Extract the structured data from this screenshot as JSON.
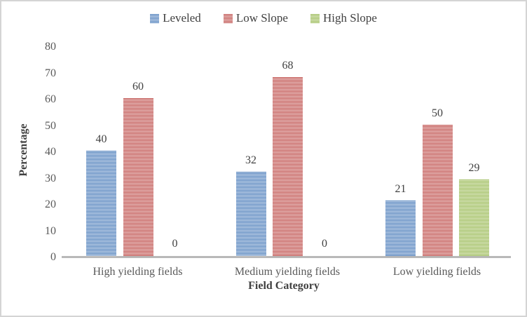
{
  "chart_data": {
    "type": "bar",
    "title": "",
    "xlabel": "Field Category",
    "ylabel": "Percentage",
    "categories": [
      "High yielding fields",
      "Medium yielding fields",
      "Low yielding fields"
    ],
    "series": [
      {
        "name": "Leveled",
        "values": [
          40,
          32,
          21
        ],
        "color_dark": "#4a7cba",
        "color_light": "#d6e1ef"
      },
      {
        "name": "Low Slope",
        "values": [
          60,
          68,
          50
        ],
        "color_dark": "#c0504d",
        "color_light": "#eed3d2"
      },
      {
        "name": "High Slope",
        "values": [
          0,
          0,
          29
        ],
        "color_dark": "#9bbb59",
        "color_light": "#e4eccf"
      }
    ],
    "ylim": [
      0,
      80
    ],
    "yticks": [
      0,
      10,
      20,
      30,
      40,
      50,
      60,
      70,
      80
    ],
    "grid": false,
    "legend_position": "top",
    "data_labels": true,
    "bar_fill_style": "horizontal-stripes"
  },
  "colors": {
    "axis_line": "#b9b9b9",
    "tick_text": "#595959",
    "label_text": "#404040",
    "frame_border": "#d4d4d4"
  }
}
